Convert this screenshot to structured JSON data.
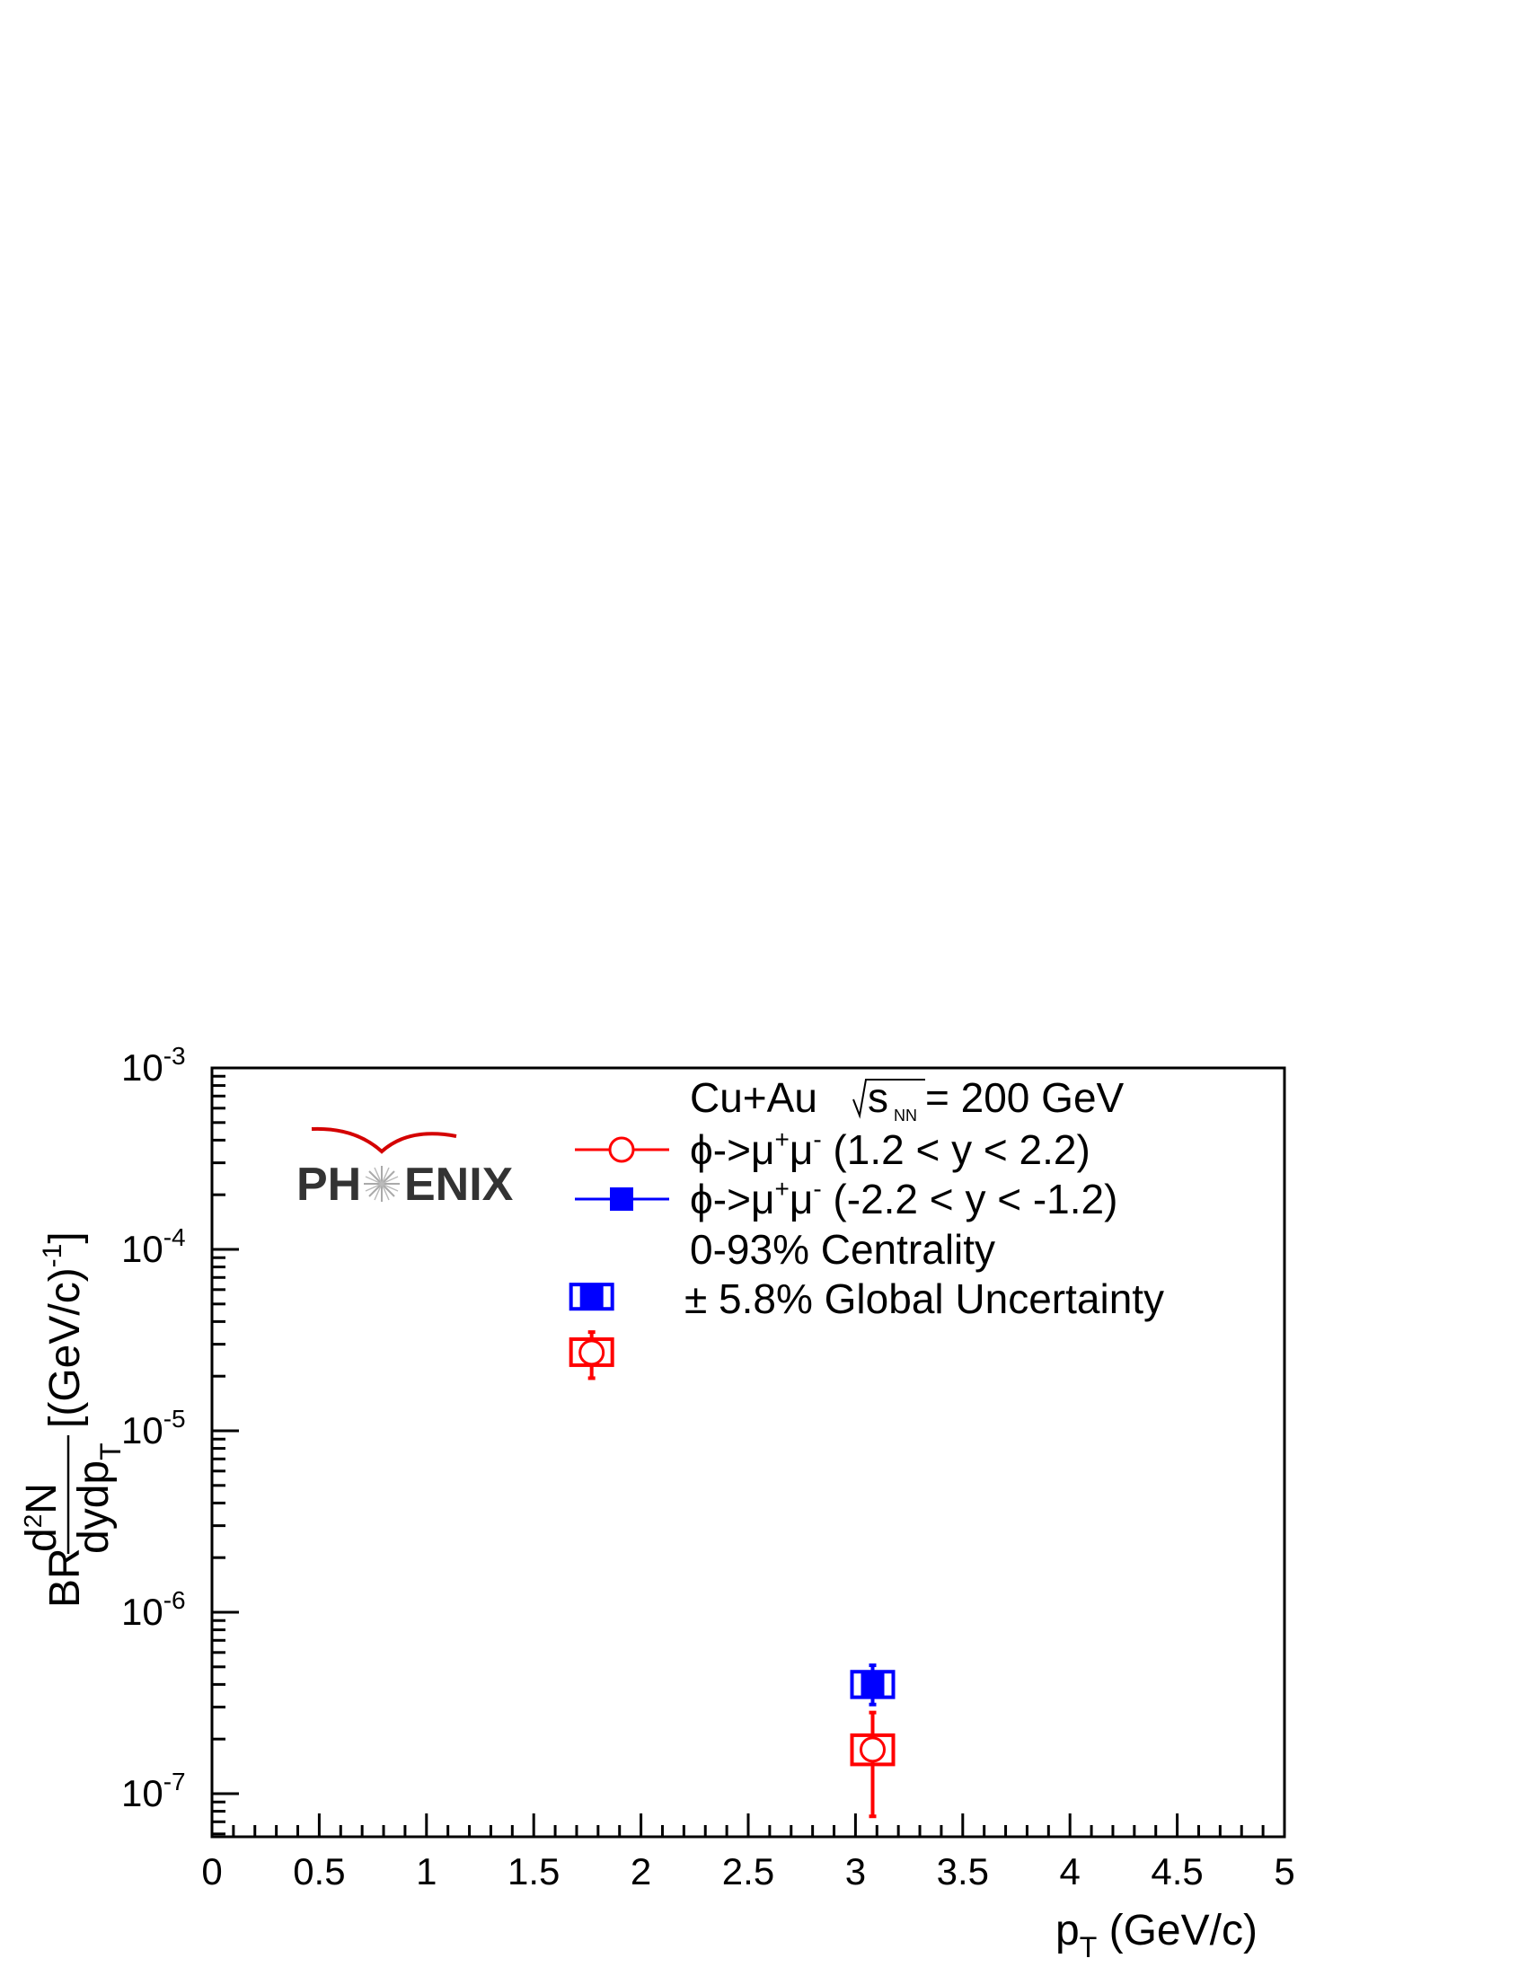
{
  "chart_data": {
    "type": "scatter",
    "title": "",
    "xlabel": "p_T (GeV/c)",
    "xlabel_main": "p",
    "xlabel_sub": "T",
    "xlabel_unit": " (GeV/c)",
    "ylabel": "BR d²N/dydp_T [(GeV/c)^-1]",
    "ylabel_prefix": "BR",
    "ylabel_frac_num": "d",
    "ylabel_frac_num_sup": "2",
    "ylabel_frac_num_tail": "N",
    "ylabel_frac_den": "dydp",
    "ylabel_frac_den_sub": "T",
    "ylabel_bracket": " [(GeV/c)",
    "ylabel_bracket_sup": "-1",
    "ylabel_bracket_close": "]",
    "xlim": [
      0,
      5
    ],
    "ylim": [
      6e-08,
      0.001
    ],
    "yscale": "log",
    "grid": false,
    "legend_position": "top-right",
    "x_ticks": [
      "0",
      "0.5",
      "1",
      "1.5",
      "2",
      "2.5",
      "3",
      "3.5",
      "4",
      "4.5",
      "5"
    ],
    "x_tick_values": [
      0,
      0.5,
      1,
      1.5,
      2,
      2.5,
      3,
      3.5,
      4,
      4.5,
      5
    ],
    "y_ticks": [
      {
        "base": "10",
        "exp": "-3",
        "value": 0.001
      },
      {
        "base": "10",
        "exp": "-4",
        "value": 0.0001
      },
      {
        "base": "10",
        "exp": "-5",
        "value": 1e-05
      },
      {
        "base": "10",
        "exp": "-6",
        "value": 1e-06
      },
      {
        "base": "10",
        "exp": "-7",
        "value": 1e-07
      }
    ],
    "series": [
      {
        "name": "ϕ->μ⁺μ⁻ (1.2 < y < 2.2)",
        "label_main": "ϕ->μ",
        "label_sup1": "+",
        "label_mid": "μ",
        "label_sup2": "-",
        "label_tail": " (1.2 < y < 2.2)",
        "color": "#ff0000",
        "marker": "open-circle",
        "points": [
          {
            "x": 1.77,
            "y": 2.7e-05,
            "stat_low": 1.95e-05,
            "stat_high": 3.5e-05,
            "sys_low": 2.3e-05,
            "sys_high": 3.2e-05
          },
          {
            "x": 3.08,
            "y": 1.75e-07,
            "stat_low": 7.5e-08,
            "stat_high": 2.8e-07,
            "sys_low": 1.45e-07,
            "sys_high": 2.1e-07
          }
        ]
      },
      {
        "name": "ϕ->μ⁺μ⁻ (-2.2 < y < -1.2)",
        "label_main": "ϕ->μ",
        "label_sup1": "+",
        "label_mid": "μ",
        "label_sup2": "-",
        "label_tail": " (-2.2 < y < -1.2)",
        "color": "#0000ff",
        "marker": "filled-square",
        "points": [
          {
            "x": 1.77,
            "y": 5.5e-05,
            "stat_low": 4.9e-05,
            "stat_high": 6.1e-05,
            "sys_low": 4.7e-05,
            "sys_high": 6.4e-05
          },
          {
            "x": 3.08,
            "y": 4e-07,
            "stat_low": 3.1e-07,
            "stat_high": 5.1e-07,
            "sys_low": 3.4e-07,
            "sys_high": 4.7e-07
          }
        ]
      }
    ],
    "annotations": {
      "system_prefix": "Cu+Au ",
      "system_s": "s",
      "system_s_sub": "NN",
      "system_suffix": " = 200 GeV",
      "centrality": "0-93% Centrality",
      "global_unc": "± 5.8% Global Uncertainty"
    },
    "logo": {
      "text_left": "PH",
      "text_right": "ENIX",
      "arc_color": "#d40000"
    }
  }
}
